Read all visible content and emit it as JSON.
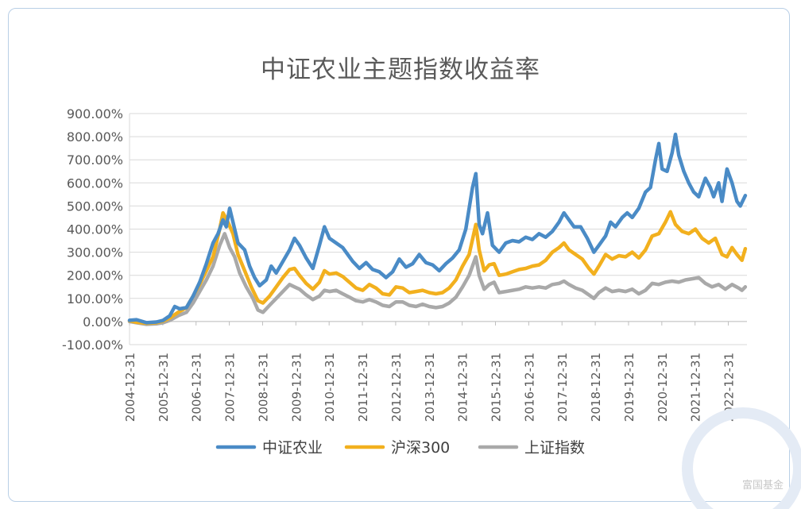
{
  "watermark_text": "富国基金",
  "colors": {
    "agri": "#4a8bc6",
    "hs300": "#f2b01e",
    "sse": "#a9a9a9",
    "grid": "#d9d9d9",
    "text": "#595959"
  },
  "chart_data": {
    "type": "line",
    "title": "中证农业主题指数收益率",
    "xlabel": "",
    "ylabel": "",
    "ylim": [
      -100,
      900
    ],
    "yticks": [
      "900.00%",
      "800.00%",
      "700.00%",
      "600.00%",
      "500.00%",
      "400.00%",
      "300.00%",
      "200.00%",
      "100.00%",
      "0.00%",
      "-100.00%"
    ],
    "xticks": [
      "2004-12-31",
      "2005-12-31",
      "2006-12-31",
      "2007-12-31",
      "2008-12-31",
      "2009-12-31",
      "2010-12-31",
      "2011-12-31",
      "2012-12-31",
      "2013-12-31",
      "2014-12-31",
      "2015-12-31",
      "2016-12-31",
      "2017-12-31",
      "2018-12-31",
      "2019-12-31",
      "2020-12-31",
      "2021-12-31",
      "2022-12-31"
    ],
    "legend_position": "bottom",
    "grid": true,
    "series": [
      {
        "name": "中证农业",
        "color": "#4a8bc6",
        "points": [
          [
            2004.99,
            5
          ],
          [
            2005.2,
            8
          ],
          [
            2005.5,
            -5
          ],
          [
            2005.8,
            -2
          ],
          [
            2006.0,
            5
          ],
          [
            2006.2,
            25
          ],
          [
            2006.35,
            65
          ],
          [
            2006.5,
            55
          ],
          [
            2006.7,
            60
          ],
          [
            2006.9,
            110
          ],
          [
            2007.1,
            170
          ],
          [
            2007.3,
            250
          ],
          [
            2007.5,
            340
          ],
          [
            2007.65,
            380
          ],
          [
            2007.8,
            440
          ],
          [
            2007.9,
            410
          ],
          [
            2008.0,
            490
          ],
          [
            2008.1,
            430
          ],
          [
            2008.25,
            340
          ],
          [
            2008.45,
            310
          ],
          [
            2008.6,
            240
          ],
          [
            2008.75,
            190
          ],
          [
            2008.9,
            155
          ],
          [
            2009.1,
            180
          ],
          [
            2009.25,
            240
          ],
          [
            2009.4,
            210
          ],
          [
            2009.6,
            260
          ],
          [
            2009.8,
            310
          ],
          [
            2009.95,
            360
          ],
          [
            2010.1,
            330
          ],
          [
            2010.3,
            275
          ],
          [
            2010.5,
            230
          ],
          [
            2010.7,
            330
          ],
          [
            2010.85,
            410
          ],
          [
            2011.0,
            360
          ],
          [
            2011.2,
            340
          ],
          [
            2011.4,
            320
          ],
          [
            2011.55,
            290
          ],
          [
            2011.7,
            260
          ],
          [
            2011.9,
            230
          ],
          [
            2012.1,
            255
          ],
          [
            2012.3,
            225
          ],
          [
            2012.5,
            215
          ],
          [
            2012.7,
            190
          ],
          [
            2012.9,
            215
          ],
          [
            2013.1,
            270
          ],
          [
            2013.3,
            235
          ],
          [
            2013.5,
            250
          ],
          [
            2013.7,
            290
          ],
          [
            2013.9,
            255
          ],
          [
            2014.1,
            245
          ],
          [
            2014.3,
            220
          ],
          [
            2014.5,
            250
          ],
          [
            2014.7,
            275
          ],
          [
            2014.9,
            310
          ],
          [
            2015.1,
            400
          ],
          [
            2015.3,
            580
          ],
          [
            2015.4,
            640
          ],
          [
            2015.5,
            420
          ],
          [
            2015.6,
            380
          ],
          [
            2015.75,
            470
          ],
          [
            2015.9,
            330
          ],
          [
            2016.1,
            300
          ],
          [
            2016.3,
            340
          ],
          [
            2016.5,
            350
          ],
          [
            2016.7,
            345
          ],
          [
            2016.9,
            365
          ],
          [
            2017.1,
            355
          ],
          [
            2017.3,
            380
          ],
          [
            2017.5,
            365
          ],
          [
            2017.7,
            390
          ],
          [
            2017.9,
            430
          ],
          [
            2018.05,
            470
          ],
          [
            2018.15,
            450
          ],
          [
            2018.35,
            410
          ],
          [
            2018.55,
            410
          ],
          [
            2018.75,
            360
          ],
          [
            2018.95,
            300
          ],
          [
            2019.1,
            330
          ],
          [
            2019.3,
            370
          ],
          [
            2019.45,
            430
          ],
          [
            2019.6,
            410
          ],
          [
            2019.8,
            450
          ],
          [
            2019.95,
            470
          ],
          [
            2020.1,
            450
          ],
          [
            2020.3,
            490
          ],
          [
            2020.5,
            560
          ],
          [
            2020.65,
            580
          ],
          [
            2020.8,
            700
          ],
          [
            2020.9,
            770
          ],
          [
            2021.0,
            660
          ],
          [
            2021.15,
            650
          ],
          [
            2021.3,
            730
          ],
          [
            2021.4,
            810
          ],
          [
            2021.5,
            720
          ],
          [
            2021.65,
            650
          ],
          [
            2021.8,
            600
          ],
          [
            2021.95,
            560
          ],
          [
            2022.1,
            540
          ],
          [
            2022.3,
            620
          ],
          [
            2022.45,
            580
          ],
          [
            2022.55,
            540
          ],
          [
            2022.7,
            600
          ],
          [
            2022.8,
            520
          ],
          [
            2022.95,
            660
          ],
          [
            2023.1,
            600
          ],
          [
            2023.25,
            520
          ],
          [
            2023.35,
            500
          ],
          [
            2023.5,
            545
          ]
        ]
      },
      {
        "name": "沪深300",
        "color": "#f2b01e",
        "points": [
          [
            2004.99,
            3
          ],
          [
            2005.2,
            -3
          ],
          [
            2005.5,
            -8
          ],
          [
            2005.8,
            -5
          ],
          [
            2006.0,
            2
          ],
          [
            2006.2,
            15
          ],
          [
            2006.45,
            40
          ],
          [
            2006.7,
            60
          ],
          [
            2006.9,
            110
          ],
          [
            2007.1,
            160
          ],
          [
            2007.3,
            220
          ],
          [
            2007.5,
            280
          ],
          [
            2007.7,
            400
          ],
          [
            2007.8,
            470
          ],
          [
            2007.95,
            430
          ],
          [
            2008.1,
            380
          ],
          [
            2008.25,
            290
          ],
          [
            2008.45,
            220
          ],
          [
            2008.65,
            150
          ],
          [
            2008.85,
            90
          ],
          [
            2009.0,
            80
          ],
          [
            2009.2,
            110
          ],
          [
            2009.4,
            150
          ],
          [
            2009.6,
            190
          ],
          [
            2009.8,
            225
          ],
          [
            2009.95,
            230
          ],
          [
            2010.1,
            200
          ],
          [
            2010.3,
            165
          ],
          [
            2010.5,
            140
          ],
          [
            2010.7,
            170
          ],
          [
            2010.85,
            220
          ],
          [
            2011.0,
            205
          ],
          [
            2011.2,
            210
          ],
          [
            2011.4,
            195
          ],
          [
            2011.6,
            170
          ],
          [
            2011.8,
            145
          ],
          [
            2012.0,
            135
          ],
          [
            2012.2,
            160
          ],
          [
            2012.4,
            145
          ],
          [
            2012.6,
            120
          ],
          [
            2012.8,
            115
          ],
          [
            2013.0,
            150
          ],
          [
            2013.2,
            145
          ],
          [
            2013.4,
            125
          ],
          [
            2013.6,
            130
          ],
          [
            2013.8,
            135
          ],
          [
            2014.0,
            125
          ],
          [
            2014.2,
            120
          ],
          [
            2014.4,
            125
          ],
          [
            2014.6,
            145
          ],
          [
            2014.8,
            180
          ],
          [
            2015.0,
            240
          ],
          [
            2015.2,
            290
          ],
          [
            2015.4,
            420
          ],
          [
            2015.5,
            310
          ],
          [
            2015.65,
            220
          ],
          [
            2015.8,
            245
          ],
          [
            2015.95,
            250
          ],
          [
            2016.1,
            200
          ],
          [
            2016.3,
            205
          ],
          [
            2016.5,
            215
          ],
          [
            2016.7,
            225
          ],
          [
            2016.9,
            230
          ],
          [
            2017.1,
            240
          ],
          [
            2017.3,
            245
          ],
          [
            2017.5,
            265
          ],
          [
            2017.7,
            300
          ],
          [
            2017.9,
            320
          ],
          [
            2018.05,
            340
          ],
          [
            2018.2,
            310
          ],
          [
            2018.4,
            290
          ],
          [
            2018.6,
            270
          ],
          [
            2018.8,
            230
          ],
          [
            2018.95,
            205
          ],
          [
            2019.1,
            240
          ],
          [
            2019.3,
            290
          ],
          [
            2019.5,
            270
          ],
          [
            2019.7,
            285
          ],
          [
            2019.9,
            280
          ],
          [
            2020.1,
            300
          ],
          [
            2020.3,
            275
          ],
          [
            2020.5,
            310
          ],
          [
            2020.7,
            370
          ],
          [
            2020.9,
            380
          ],
          [
            2021.1,
            430
          ],
          [
            2021.25,
            475
          ],
          [
            2021.4,
            420
          ],
          [
            2021.6,
            390
          ],
          [
            2021.8,
            380
          ],
          [
            2022.0,
            400
          ],
          [
            2022.2,
            360
          ],
          [
            2022.4,
            340
          ],
          [
            2022.6,
            360
          ],
          [
            2022.8,
            290
          ],
          [
            2022.95,
            280
          ],
          [
            2023.1,
            320
          ],
          [
            2023.25,
            290
          ],
          [
            2023.4,
            265
          ],
          [
            2023.5,
            315
          ]
        ]
      },
      {
        "name": "上证指数",
        "color": "#a9a9a9",
        "points": [
          [
            2004.99,
            0
          ],
          [
            2005.2,
            -5
          ],
          [
            2005.5,
            -12
          ],
          [
            2005.8,
            -10
          ],
          [
            2006.0,
            -5
          ],
          [
            2006.2,
            5
          ],
          [
            2006.45,
            25
          ],
          [
            2006.7,
            40
          ],
          [
            2006.9,
            80
          ],
          [
            2007.1,
            130
          ],
          [
            2007.3,
            180
          ],
          [
            2007.5,
            240
          ],
          [
            2007.7,
            330
          ],
          [
            2007.85,
            380
          ],
          [
            2008.0,
            320
          ],
          [
            2008.15,
            280
          ],
          [
            2008.3,
            210
          ],
          [
            2008.5,
            150
          ],
          [
            2008.7,
            100
          ],
          [
            2008.85,
            50
          ],
          [
            2009.0,
            40
          ],
          [
            2009.2,
            70
          ],
          [
            2009.4,
            100
          ],
          [
            2009.6,
            130
          ],
          [
            2009.8,
            160
          ],
          [
            2009.95,
            150
          ],
          [
            2010.1,
            140
          ],
          [
            2010.3,
            115
          ],
          [
            2010.5,
            95
          ],
          [
            2010.7,
            110
          ],
          [
            2010.85,
            135
          ],
          [
            2011.0,
            130
          ],
          [
            2011.2,
            135
          ],
          [
            2011.4,
            120
          ],
          [
            2011.6,
            105
          ],
          [
            2011.8,
            90
          ],
          [
            2012.0,
            85
          ],
          [
            2012.2,
            95
          ],
          [
            2012.4,
            85
          ],
          [
            2012.6,
            70
          ],
          [
            2012.8,
            65
          ],
          [
            2013.0,
            85
          ],
          [
            2013.2,
            85
          ],
          [
            2013.4,
            70
          ],
          [
            2013.6,
            65
          ],
          [
            2013.8,
            75
          ],
          [
            2014.0,
            65
          ],
          [
            2014.2,
            60
          ],
          [
            2014.4,
            65
          ],
          [
            2014.6,
            80
          ],
          [
            2014.8,
            105
          ],
          [
            2015.0,
            150
          ],
          [
            2015.2,
            200
          ],
          [
            2015.4,
            280
          ],
          [
            2015.5,
            200
          ],
          [
            2015.65,
            140
          ],
          [
            2015.8,
            160
          ],
          [
            2015.95,
            170
          ],
          [
            2016.1,
            125
          ],
          [
            2016.3,
            130
          ],
          [
            2016.5,
            135
          ],
          [
            2016.7,
            140
          ],
          [
            2016.9,
            150
          ],
          [
            2017.1,
            145
          ],
          [
            2017.3,
            150
          ],
          [
            2017.5,
            145
          ],
          [
            2017.7,
            160
          ],
          [
            2017.9,
            165
          ],
          [
            2018.05,
            175
          ],
          [
            2018.2,
            160
          ],
          [
            2018.4,
            145
          ],
          [
            2018.6,
            135
          ],
          [
            2018.8,
            115
          ],
          [
            2018.95,
            100
          ],
          [
            2019.1,
            125
          ],
          [
            2019.3,
            145
          ],
          [
            2019.5,
            130
          ],
          [
            2019.7,
            135
          ],
          [
            2019.9,
            130
          ],
          [
            2020.1,
            140
          ],
          [
            2020.3,
            120
          ],
          [
            2020.5,
            135
          ],
          [
            2020.7,
            165
          ],
          [
            2020.9,
            160
          ],
          [
            2021.1,
            170
          ],
          [
            2021.3,
            175
          ],
          [
            2021.5,
            170
          ],
          [
            2021.7,
            180
          ],
          [
            2021.9,
            185
          ],
          [
            2022.1,
            190
          ],
          [
            2022.3,
            165
          ],
          [
            2022.5,
            150
          ],
          [
            2022.7,
            160
          ],
          [
            2022.9,
            140
          ],
          [
            2023.1,
            160
          ],
          [
            2023.3,
            145
          ],
          [
            2023.4,
            135
          ],
          [
            2023.5,
            150
          ]
        ]
      }
    ]
  }
}
